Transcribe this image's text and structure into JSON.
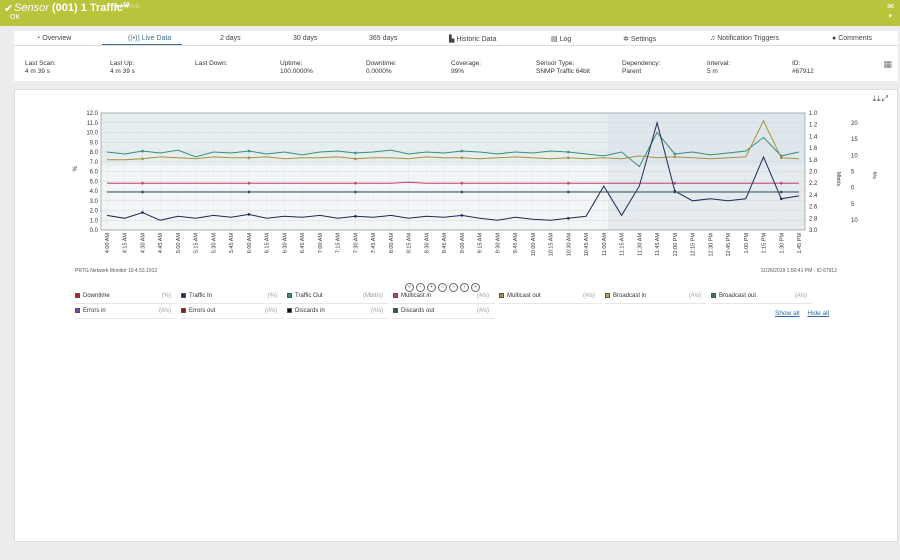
{
  "header": {
    "title_prefix": "Sensor",
    "title_main": "(001) 1 Traffic",
    "title_sup": "13",
    "stars": "★★★☆☆",
    "status": "OK"
  },
  "tabs": [
    {
      "label": "Overview"
    },
    {
      "label": "Live Data"
    },
    {
      "label": "2  days"
    },
    {
      "label": "30 days"
    },
    {
      "label": "365 days"
    },
    {
      "label": "Historic Data"
    },
    {
      "label": "Log"
    },
    {
      "label": "Settings"
    },
    {
      "label": "Notification Triggers"
    },
    {
      "label": "Comments"
    }
  ],
  "info": [
    {
      "label": "Last Scan:",
      "value": "4 m 39 s"
    },
    {
      "label": "Last Up:",
      "value": "4 m 39 s"
    },
    {
      "label": "Last Down:",
      "value": ""
    },
    {
      "label": "Uptime:",
      "value": "100.0000%"
    },
    {
      "label": "Downtime:",
      "value": "0.0000%"
    },
    {
      "label": "Coverage:",
      "value": "99%"
    },
    {
      "label": "Sensor Type:",
      "value": "SNMP Traffic 64bit"
    },
    {
      "label": "Dependency:",
      "value": "Parent"
    },
    {
      "label": "Interval:",
      "value": "5 m"
    },
    {
      "label": "ID:",
      "value": "#67912"
    }
  ],
  "chart_data": {
    "type": "line",
    "ylabel_left": "%",
    "ylabel_right1": "Mbit/s",
    "ylabel_right2": "#/s",
    "y_left_ticks": [
      "12.0",
      "11.0",
      "10.0",
      "9.0",
      "8.0",
      "7.0",
      "6.0",
      "5.0",
      "4.0",
      "3.0",
      "2.0",
      "1.0",
      "0.0"
    ],
    "y_right1_ticks": [
      "1.0",
      "1.2",
      "1.4",
      "1.6",
      "1.8",
      "2.0",
      "2.2",
      "2.4",
      "2.6",
      "2.8",
      "3.0"
    ],
    "y_right2_ticks": [
      "20",
      "15",
      "10",
      "5",
      "0",
      "5",
      "10"
    ],
    "x_ticks": [
      "4:00 AM",
      "4:15 AM",
      "4:30 AM",
      "4:45 AM",
      "5:00 AM",
      "5:15 AM",
      "5:30 AM",
      "5:45 AM",
      "6:00 AM",
      "6:15 AM",
      "6:30 AM",
      "6:45 AM",
      "7:00 AM",
      "7:15 AM",
      "7:30 AM",
      "7:45 AM",
      "8:00 AM",
      "8:15 AM",
      "8:30 AM",
      "8:45 AM",
      "9:00 AM",
      "9:15 AM",
      "9:30 AM",
      "9:45 AM",
      "10:00 AM",
      "10:15 AM",
      "10:30 AM",
      "10:45 AM",
      "11:00 AM",
      "11:15 AM",
      "11:30 AM",
      "11:45 AM",
      "12:00 PM",
      "12:15 PM",
      "12:30 PM",
      "12:45 PM",
      "1:00 PM",
      "1:15 PM",
      "1:30 PM",
      "1:45 PM"
    ],
    "series": [
      {
        "name": "Traffic Out",
        "color": "#3a8f7a",
        "values": [
          8.0,
          7.8,
          8.1,
          7.9,
          8.2,
          7.5,
          8.0,
          7.9,
          8.1,
          7.8,
          8.0,
          7.7,
          8.0,
          8.1,
          7.9,
          8.0,
          8.2,
          7.8,
          8.0,
          7.9,
          8.1,
          8.0,
          7.8,
          8.0,
          7.9,
          8.1,
          8.0,
          7.8,
          7.6,
          8.0,
          6.5,
          10.0,
          7.8,
          8.0,
          7.7,
          7.9,
          8.1,
          9.5,
          7.6,
          8.0
        ]
      },
      {
        "name": "Multicast out",
        "color": "#a7913f",
        "values": [
          7.2,
          7.2,
          7.3,
          7.5,
          7.4,
          7.3,
          7.5,
          7.4,
          7.4,
          7.5,
          7.3,
          7.4,
          7.4,
          7.5,
          7.3,
          7.4,
          7.4,
          7.3,
          7.5,
          7.4,
          7.4,
          7.3,
          7.4,
          7.5,
          7.4,
          7.3,
          7.4,
          7.3,
          7.4,
          7.3,
          7.6,
          7.4,
          7.5,
          7.4,
          7.3,
          7.4,
          7.5,
          11.2,
          7.4,
          7.3
        ]
      },
      {
        "name": "Multicast in",
        "color": "#c04070",
        "values": [
          4.8,
          4.8,
          4.8,
          4.8,
          4.8,
          4.8,
          4.8,
          4.8,
          4.8,
          4.8,
          4.8,
          4.8,
          4.8,
          4.8,
          4.8,
          4.8,
          4.8,
          4.9,
          4.8,
          4.8,
          4.8,
          4.8,
          4.8,
          4.8,
          4.8,
          4.8,
          4.8,
          4.8,
          4.8,
          4.8,
          4.8,
          4.8,
          4.8,
          4.8,
          4.8,
          4.8,
          4.8,
          4.8,
          4.8,
          4.8
        ]
      },
      {
        "name": "Traffic In",
        "color": "#1d2a52",
        "values": [
          1.5,
          1.2,
          1.8,
          1.0,
          1.4,
          1.2,
          1.5,
          1.3,
          1.6,
          1.2,
          1.4,
          1.3,
          1.5,
          1.2,
          1.4,
          1.3,
          1.5,
          1.2,
          1.4,
          1.3,
          1.5,
          1.2,
          1.0,
          1.3,
          1.1,
          1.0,
          1.2,
          1.4,
          4.5,
          1.5,
          4.5,
          11.0,
          4.0,
          3.0,
          3.2,
          3.0,
          3.2,
          7.5,
          3.2,
          3.5
        ]
      },
      {
        "name": "Discards out",
        "color": "#2f4f5a",
        "values": [
          3.9,
          3.9,
          3.9,
          3.9,
          3.9,
          3.9,
          3.9,
          3.9,
          3.9,
          3.9,
          3.9,
          3.9,
          3.9,
          3.9,
          3.9,
          3.9,
          3.9,
          3.9,
          3.9,
          3.9,
          3.9,
          3.9,
          3.9,
          3.9,
          3.9,
          3.9,
          3.9,
          3.9,
          3.9,
          3.9,
          3.9,
          3.9,
          3.9,
          3.9,
          3.9,
          3.9,
          3.9,
          3.9,
          3.9,
          3.9
        ]
      }
    ],
    "footer_left": "PRTG Network Monitor 19.4.53.1912",
    "footer_right": "11/26/2019 1:50:41 PM - ID 67912"
  },
  "legend": [
    {
      "label": "Downtime",
      "unit": "(%)",
      "color": "#b22222"
    },
    {
      "label": "Traffic In",
      "unit": "(%)",
      "color": "#1d2a52"
    },
    {
      "label": "Traffic Out",
      "unit": "(Mbit/s)",
      "color": "#3a8f7a"
    },
    {
      "label": "Multicast in",
      "unit": "(#/s)",
      "color": "#c04070"
    },
    {
      "label": "Multicast out",
      "unit": "(#/s)",
      "color": "#a7913f"
    },
    {
      "label": "Broadcast in",
      "unit": "(#/s)",
      "color": "#c9a04a"
    },
    {
      "label": "Broadcast out",
      "unit": "(#/s)",
      "color": "#2f7a5a"
    },
    {
      "label": "Errors in",
      "unit": "(#/s)",
      "color": "#7a4a9a"
    },
    {
      "label": "Errors out",
      "unit": "(#/s)",
      "color": "#8b1a1a"
    },
    {
      "label": "Discards in",
      "unit": "(#/s)",
      "color": "#111"
    },
    {
      "label": "Discards out",
      "unit": "(#/s)",
      "color": "#2f4f5a"
    }
  ],
  "links": {
    "show_all": "Show all",
    "hide_all": "Hide all"
  }
}
